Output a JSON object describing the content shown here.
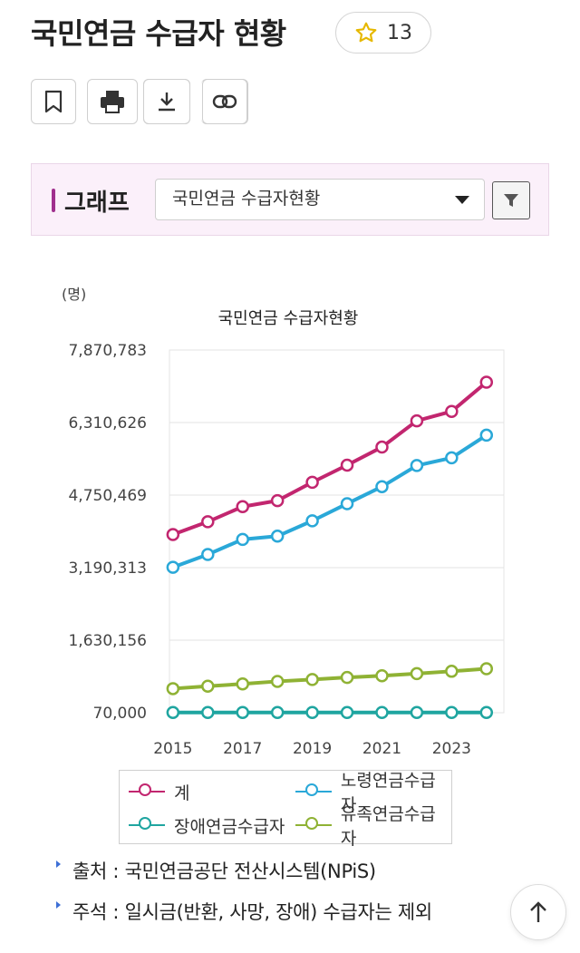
{
  "page": {
    "title": "국민연금 수급자 현황",
    "star_count": "13"
  },
  "toolbar": {
    "icons": [
      "bookmark-icon",
      "print-icon",
      "download-icon",
      "link-icon"
    ]
  },
  "graph_panel": {
    "label": "그래프",
    "select_value": "국민연금 수급자현황"
  },
  "chart_data": {
    "type": "line",
    "title": "국민연금 수급자현황",
    "unit_label": "(명)",
    "x": [
      2015,
      2016,
      2017,
      2018,
      2019,
      2020,
      2021,
      2022,
      2023,
      2024
    ],
    "x_tick_labels": [
      "2015",
      "2017",
      "2019",
      "2021",
      "2023"
    ],
    "y_tick_values": [
      70000,
      1630156,
      3190313,
      4750469,
      6310626,
      7870783
    ],
    "y_tick_labels": [
      "70,000",
      "1,630,156",
      "3,190,313",
      "4,750,469",
      "6,310,626",
      "7,870,783"
    ],
    "ylim": [
      70000,
      7870783
    ],
    "grid": true,
    "legend_position": "bottom",
    "series": [
      {
        "name": "계",
        "color": "#c2266f",
        "values": [
          3902000,
          4177000,
          4502000,
          4631000,
          5026000,
          5395000,
          5783000,
          6348000,
          6550000,
          7178000
        ]
      },
      {
        "name": "노령연금수급자",
        "color": "#2aa8d8",
        "values": [
          3198000,
          3473000,
          3798000,
          3867000,
          4197000,
          4566000,
          4932000,
          5386000,
          5552000,
          6039000
        ]
      },
      {
        "name": "장애연금수급자",
        "color": "#1fa5a0",
        "values": [
          75000,
          75000,
          75000,
          75000,
          75000,
          75000,
          75000,
          75000,
          75000,
          75000
        ]
      },
      {
        "name": "유족연금수급자",
        "color": "#8fb234",
        "values": [
          588000,
          641000,
          689000,
          744000,
          784000,
          829000,
          864000,
          911000,
          961000,
          1016000
        ]
      }
    ]
  },
  "notes": {
    "source": "출처 : 국민연금공단 전산시스템(NPiS)",
    "remark": "주석 : 일시금(반환, 사망, 장애) 수급자는 제외"
  },
  "colors": {
    "accent": "#a0308e",
    "panel_bg": "#fbf0fa"
  }
}
